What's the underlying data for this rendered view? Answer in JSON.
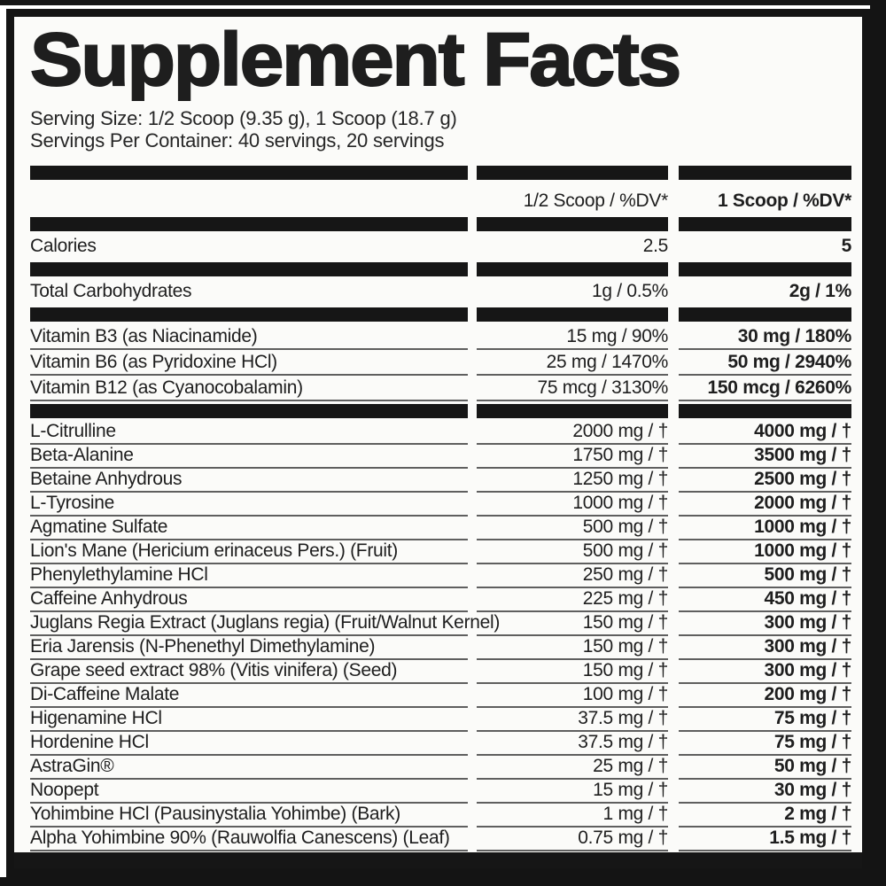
{
  "label": {
    "title": "Supplement Facts",
    "serving_size": "Serving Size: 1/2 Scoop (9.35 g), 1 Scoop (18.7 g)",
    "servings_per_container": "Servings Per Container: 40 servings, 20 servings",
    "columns": {
      "half_scoop": "1/2 Scoop / %DV*",
      "one_scoop": "1 Scoop / %DV*"
    },
    "calories": {
      "name": "Calories",
      "half": "2.5",
      "full": "5"
    },
    "total_carbohydrates": {
      "name": "Total Carbohydrates",
      "half": "1g / 0.5%",
      "full": "2g / 1%"
    },
    "vitamins": [
      {
        "name": "Vitamin B3 (as Niacinamide)",
        "half": "15 mg / 90%",
        "full": "30 mg / 180%"
      },
      {
        "name": "Vitamin B6 (as Pyridoxine HCl)",
        "half": "25 mg / 1470%",
        "full": "50 mg / 2940%"
      },
      {
        "name": "Vitamin B12 (as Cyanocobalamin)",
        "half": "75 mcg / 3130%",
        "full": "150 mcg / 6260%"
      }
    ],
    "ingredients": [
      {
        "name": "L-Citrulline",
        "half": "2000 mg / †",
        "full": "4000 mg / †"
      },
      {
        "name": "Beta-Alanine",
        "half": "1750 mg / †",
        "full": "3500 mg / †"
      },
      {
        "name": "Betaine Anhydrous",
        "half": "1250 mg / †",
        "full": "2500 mg / †"
      },
      {
        "name": "L-Tyrosine",
        "half": "1000 mg / †",
        "full": "2000 mg / †"
      },
      {
        "name": "Agmatine Sulfate",
        "half": "500 mg / †",
        "full": "1000 mg / †"
      },
      {
        "name": "Lion's Mane (Hericium erinaceus Pers.) (Fruit)",
        "half": "500 mg / †",
        "full": "1000 mg / †"
      },
      {
        "name": "Phenylethylamine HCl",
        "half": "250 mg / †",
        "full": "500 mg / †"
      },
      {
        "name": "Caffeine Anhydrous",
        "half": "225 mg / †",
        "full": "450 mg / †"
      },
      {
        "name": "Juglans Regia Extract (Juglans regia) (Fruit/Walnut Kernel)",
        "half": "150 mg / †",
        "full": "300 mg / †"
      },
      {
        "name": "Eria Jarensis (N-Phenethyl Dimethylamine)",
        "half": "150 mg / †",
        "full": "300 mg / †"
      },
      {
        "name": "Grape seed extract 98% (Vitis vinifera) (Seed)",
        "half": "150 mg / †",
        "full": "300 mg / †"
      },
      {
        "name": "Di-Caffeine Malate",
        "half": "100 mg / †",
        "full": "200 mg / †"
      },
      {
        "name": "Higenamine HCl",
        "half": "37.5 mg / †",
        "full": "75 mg / †"
      },
      {
        "name": "Hordenine HCl",
        "half": "37.5 mg / †",
        "full": "75 mg / †"
      },
      {
        "name": "AstraGin®",
        "half": "25 mg / †",
        "full": "50 mg / †"
      },
      {
        "name": "Noopept",
        "half": "15 mg / †",
        "full": "30 mg / †"
      },
      {
        "name": "Yohimbine HCl (Pausinystalia Yohimbe) (Bark)",
        "half": "1 mg / †",
        "full": "2 mg / †"
      },
      {
        "name": "Alpha Yohimbine 90% (Rauwolfia Canescens) (Leaf)",
        "half": "0.75 mg / †",
        "full": "1.5 mg / †"
      }
    ],
    "colors": {
      "bar": "#161616",
      "frame": "#141414",
      "text": "#1e1e1e",
      "underline": "#5f5f5f",
      "background": "#fbfbf9"
    }
  }
}
